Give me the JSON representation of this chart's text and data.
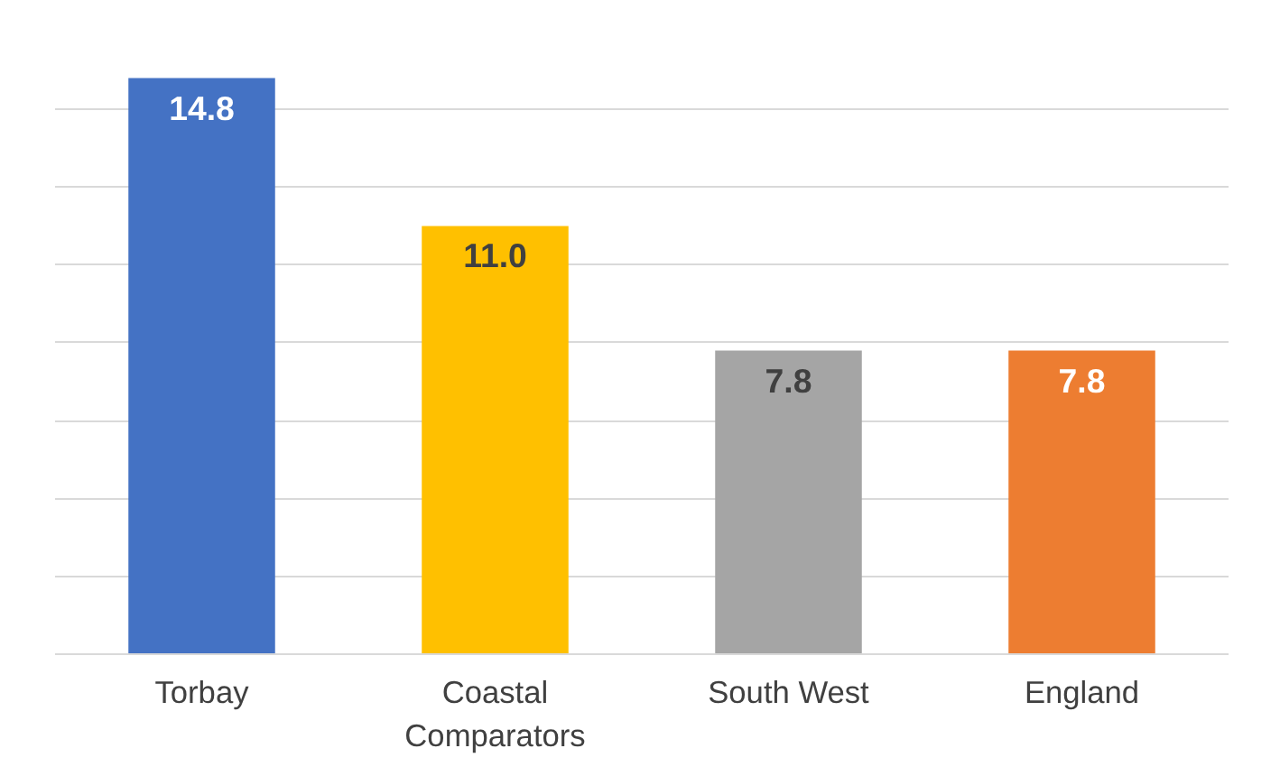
{
  "chart_data": {
    "type": "bar",
    "categories": [
      "Torbay",
      "Coastal Comparators",
      "South West",
      "England"
    ],
    "values": [
      14.8,
      11.0,
      7.8,
      7.8
    ],
    "value_labels": [
      "14.8",
      "11.0",
      "7.8",
      "7.8"
    ],
    "colors": [
      "#4472c4",
      "#ffc000",
      "#a5a5a5",
      "#ed7d31"
    ],
    "grid": "y",
    "tick_labels": "x"
  }
}
